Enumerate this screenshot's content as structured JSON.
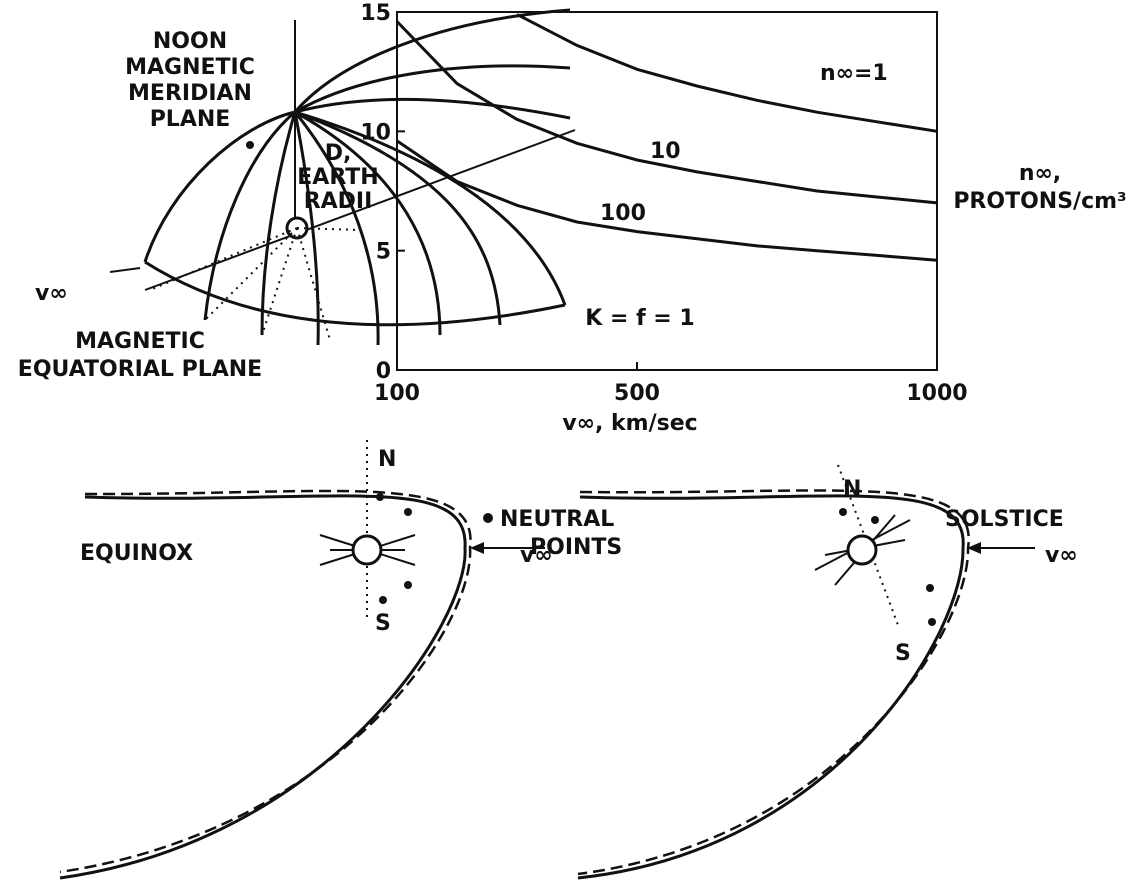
{
  "dome": {
    "noon_label": [
      "NOON",
      "MAGNETIC",
      "MERIDIAN",
      "PLANE"
    ],
    "velocity_label": "v∞",
    "equatorial_label": [
      "MAGNETIC",
      "EQUATORIAL PLANE"
    ]
  },
  "chart_data": {
    "type": "line",
    "ylabel": [
      "D,",
      "EARTH",
      "RADII"
    ],
    "xlabel": "v∞,  km/sec",
    "right_label": [
      "n∞,",
      "PROTONS/cm³"
    ],
    "annotation": "K = f = 1",
    "x": [
      100,
      200,
      300,
      400,
      500,
      600,
      700,
      800,
      900,
      1000
    ],
    "series": [
      {
        "name": "n∞=1",
        "color": "#111111",
        "values": [
          null,
          null,
          14.9,
          13.6,
          12.6,
          11.9,
          11.3,
          10.8,
          10.4,
          10.0
        ]
      },
      {
        "name": "10",
        "color": "#111111",
        "values": [
          14.6,
          12.0,
          10.5,
          9.5,
          8.8,
          8.3,
          7.9,
          7.5,
          7.25,
          7.0
        ]
      },
      {
        "name": "100",
        "color": "#111111",
        "values": [
          9.6,
          7.9,
          6.9,
          6.2,
          5.8,
          5.5,
          5.2,
          5.0,
          4.8,
          4.6
        ]
      }
    ],
    "xlim": [
      100,
      1000
    ],
    "xticks": [
      100,
      500,
      1000
    ],
    "ylim": [
      0,
      15
    ],
    "yticks": [
      0,
      5,
      10,
      15
    ]
  },
  "equinox": {
    "title": "EQUINOX",
    "north": "N",
    "south": "S",
    "velocity_label": "v∞"
  },
  "legend": [
    "NEUTRAL",
    "POINTS"
  ],
  "solstice": {
    "title": "SOLSTICE",
    "north": "N",
    "south": "S",
    "velocity_label": "v∞"
  }
}
